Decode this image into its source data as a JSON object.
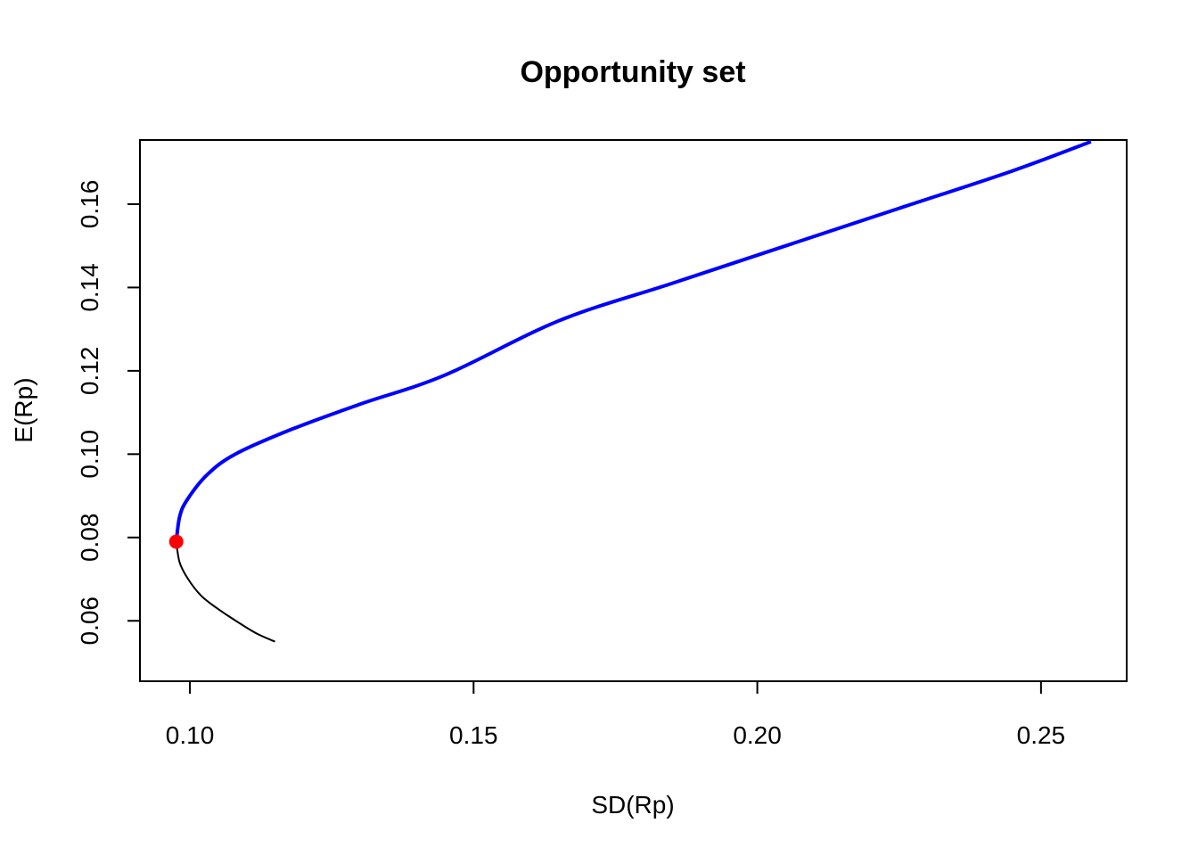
{
  "chart_data": {
    "type": "line",
    "title": "Opportunity set",
    "xlabel": "SD(Rp)",
    "ylabel": "E(Rp)",
    "xlim": [
      0.0912,
      0.2651
    ],
    "ylim": [
      0.0455,
      0.1754
    ],
    "x_ticks": [
      "0.10",
      "0.15",
      "0.20",
      "0.25"
    ],
    "y_ticks": [
      "0.06",
      "0.08",
      "0.10",
      "0.12",
      "0.14",
      "0.16"
    ],
    "colors": {
      "efficient": "#0000ff",
      "inefficient": "#000000",
      "min_variance": "#ff0000"
    },
    "min_variance_point": {
      "x": 0.0976,
      "y": 0.079
    },
    "series": [
      {
        "role": "inefficient",
        "x": [
          0.0976,
          0.0982,
          0.0997,
          0.102,
          0.1048,
          0.1081,
          0.1117,
          0.115
        ],
        "y": [
          0.079,
          0.074,
          0.07,
          0.066,
          0.063,
          0.06,
          0.057,
          0.055
        ]
      },
      {
        "role": "efficient",
        "x": [
          0.0976,
          0.0982,
          0.0995,
          0.103,
          0.108,
          0.118,
          0.13,
          0.145,
          0.165,
          0.185,
          0.205,
          0.225,
          0.245,
          0.2588
        ],
        "y": [
          0.079,
          0.085,
          0.089,
          0.095,
          0.1,
          0.106,
          0.112,
          0.119,
          0.132,
          0.141,
          0.15,
          0.159,
          0.168,
          0.175
        ]
      }
    ]
  }
}
